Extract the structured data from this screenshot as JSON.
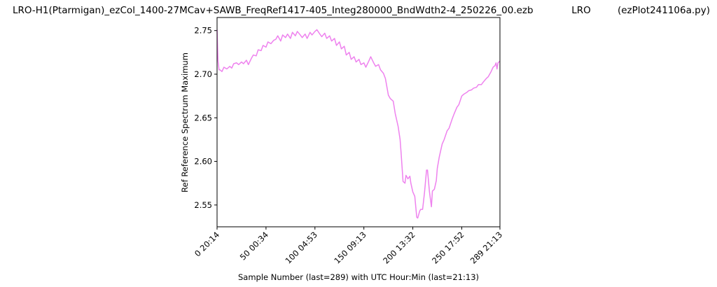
{
  "title": {
    "left": "LRO-H1(Ptarmigan)_ezCol_1400-27MCav+SAWB_FreqRef1417-405_Integ280000_BndWdth2-4_250226_00.ezb",
    "middle": "LRO",
    "right": "(ezPlot241106a.py)"
  },
  "chart_data": {
    "type": "line",
    "xlabel": "Sample Number (last=289) with UTC Hour:Min (last=21:13)",
    "ylabel": "Ref Reference Spectrum Maximum",
    "xlim": [
      0,
      289
    ],
    "ylim": [
      2.525,
      2.765
    ],
    "grid": false,
    "line_color": "#ee82ee",
    "xticks": [
      {
        "value": 0,
        "label": "0  20:14"
      },
      {
        "value": 50,
        "label": "50  00:34"
      },
      {
        "value": 100,
        "label": "100  04:53"
      },
      {
        "value": 150,
        "label": "150  09:13"
      },
      {
        "value": 200,
        "label": "200  13:32"
      },
      {
        "value": 250,
        "label": "250  17:52"
      },
      {
        "value": 289,
        "label": "289  21:13"
      }
    ],
    "yticks": [
      {
        "value": 2.55,
        "label": "2.55"
      },
      {
        "value": 2.6,
        "label": "2.60"
      },
      {
        "value": 2.65,
        "label": "2.65"
      },
      {
        "value": 2.7,
        "label": "2.70"
      },
      {
        "value": 2.75,
        "label": "2.75"
      }
    ],
    "x": [
      0,
      1,
      2,
      3,
      5,
      7,
      10,
      13,
      15,
      17,
      20,
      22,
      25,
      27,
      30,
      32,
      35,
      37,
      40,
      42,
      45,
      47,
      50,
      52,
      55,
      58,
      60,
      62,
      65,
      67,
      70,
      72,
      75,
      77,
      80,
      82,
      85,
      87,
      90,
      92,
      95,
      97,
      100,
      102,
      105,
      107,
      110,
      112,
      115,
      117,
      120,
      122,
      125,
      127,
      130,
      132,
      135,
      137,
      140,
      142,
      145,
      147,
      150,
      152,
      155,
      157,
      160,
      162,
      165,
      167,
      170,
      172,
      175,
      177,
      180,
      182,
      185,
      187,
      188,
      190,
      192,
      193,
      195,
      197,
      198,
      200,
      202,
      204,
      205,
      207,
      208,
      210,
      212,
      214,
      215,
      217,
      219,
      220,
      222,
      224,
      225,
      227,
      230,
      232,
      235,
      237,
      240,
      242,
      245,
      247,
      250,
      252,
      255,
      257,
      260,
      262,
      265,
      267,
      270,
      272,
      275,
      277,
      280,
      282,
      284,
      285,
      286,
      287,
      288,
      289
    ],
    "y": [
      2.751,
      2.715,
      2.705,
      2.705,
      2.703,
      2.708,
      2.706,
      2.709,
      2.707,
      2.712,
      2.713,
      2.711,
      2.714,
      2.712,
      2.716,
      2.711,
      2.718,
      2.722,
      2.721,
      2.728,
      2.727,
      2.733,
      2.731,
      2.737,
      2.735,
      2.739,
      2.74,
      2.744,
      2.738,
      2.745,
      2.742,
      2.746,
      2.741,
      2.748,
      2.744,
      2.749,
      2.745,
      2.742,
      2.746,
      2.741,
      2.748,
      2.745,
      2.749,
      2.751,
      2.746,
      2.743,
      2.747,
      2.741,
      2.744,
      2.738,
      2.741,
      2.733,
      2.737,
      2.729,
      2.732,
      2.722,
      2.725,
      2.717,
      2.72,
      2.714,
      2.717,
      2.711,
      2.713,
      2.708,
      2.715,
      2.72,
      2.713,
      2.709,
      2.711,
      2.705,
      2.701,
      2.695,
      2.676,
      2.672,
      2.669,
      2.655,
      2.64,
      2.625,
      2.61,
      2.577,
      2.575,
      2.584,
      2.58,
      2.583,
      2.575,
      2.565,
      2.56,
      2.536,
      2.535,
      2.543,
      2.545,
      2.545,
      2.565,
      2.59,
      2.59,
      2.565,
      2.548,
      2.566,
      2.568,
      2.578,
      2.592,
      2.605,
      2.62,
      2.625,
      2.635,
      2.638,
      2.648,
      2.654,
      2.662,
      2.665,
      2.675,
      2.677,
      2.679,
      2.681,
      2.682,
      2.684,
      2.685,
      2.688,
      2.688,
      2.691,
      2.695,
      2.697,
      2.703,
      2.708,
      2.71,
      2.713,
      2.706,
      2.713,
      2.714,
      2.715
    ]
  }
}
